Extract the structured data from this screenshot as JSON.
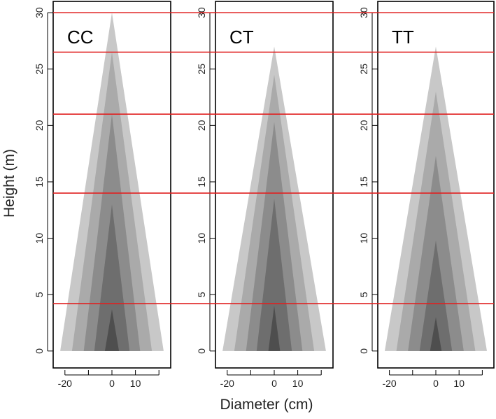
{
  "chart_data": {
    "type": "area",
    "ylabel": "Height (m)",
    "xlabel": "Diameter (cm)",
    "xlim": [
      -25,
      25
    ],
    "ylim": [
      -1.5,
      31
    ],
    "x_ticks": [
      -20,
      0,
      10
    ],
    "x_minor_ticks": [
      -10,
      20
    ],
    "y_ticks": [
      0,
      5,
      10,
      15,
      20,
      25,
      30
    ],
    "grid": false,
    "reference_lines": [
      4.2,
      14.0,
      21.0,
      26.5,
      30.0
    ],
    "reference_line_color": "#e02020",
    "shade_colors": [
      "#c8c8c8",
      "#aaaaaa",
      "#8c8c8c",
      "#6e6e6e",
      "#4e4e4e",
      "#262626"
    ],
    "panels": [
      {
        "label": "CC",
        "layers": [
          {
            "half_width_at_base": 22.0,
            "top_height": 30.0
          },
          {
            "half_width_at_base": 17.0,
            "top_height": 26.5
          },
          {
            "half_width_at_base": 12.0,
            "top_height": 21.0
          },
          {
            "half_width_at_base": 7.5,
            "top_height": 13.0
          },
          {
            "half_width_at_base": 3.0,
            "top_height": 3.7
          }
        ]
      },
      {
        "label": "CT",
        "layers": [
          {
            "half_width_at_base": 22.0,
            "top_height": 27.0
          },
          {
            "half_width_at_base": 17.0,
            "top_height": 24.5
          },
          {
            "half_width_at_base": 12.0,
            "top_height": 20.3
          },
          {
            "half_width_at_base": 7.5,
            "top_height": 13.5
          },
          {
            "half_width_at_base": 2.5,
            "top_height": 4.0
          }
        ]
      },
      {
        "label": "TT",
        "layers": [
          {
            "half_width_at_base": 22.0,
            "top_height": 27.0
          },
          {
            "half_width_at_base": 17.0,
            "top_height": 23.0
          },
          {
            "half_width_at_base": 12.0,
            "top_height": 17.3
          },
          {
            "half_width_at_base": 7.0,
            "top_height": 9.8
          },
          {
            "half_width_at_base": 2.5,
            "top_height": 3.0
          }
        ]
      }
    ]
  }
}
